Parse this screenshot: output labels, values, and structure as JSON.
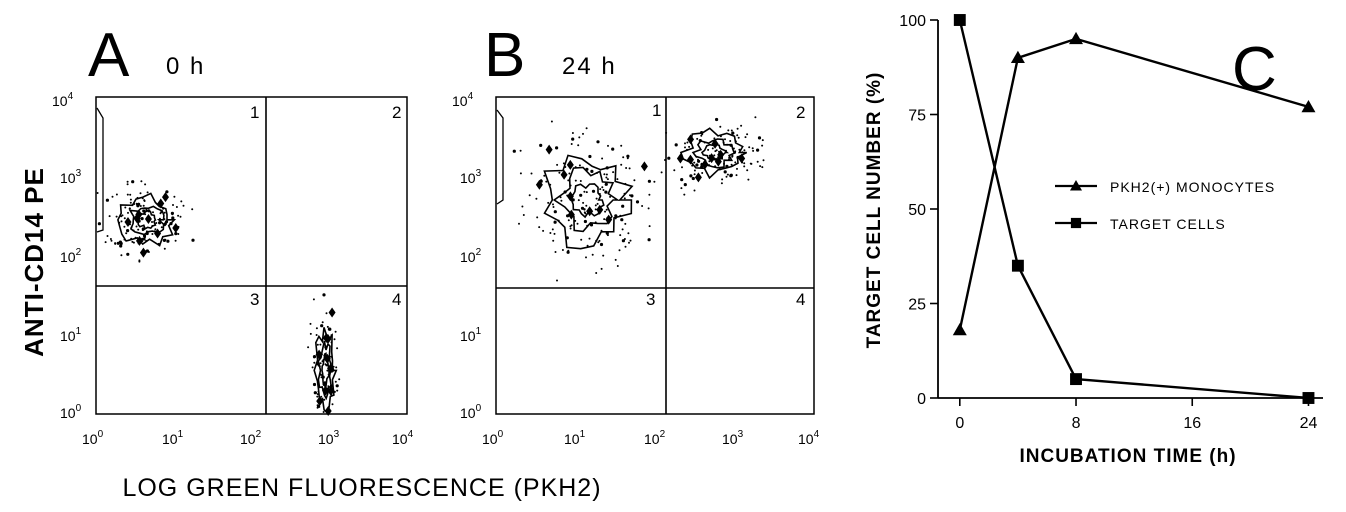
{
  "panels": {
    "A": {
      "letter": "A",
      "time": "0 h"
    },
    "B": {
      "letter": "B",
      "time": "24 h"
    },
    "C": {
      "letter": "C"
    }
  },
  "flow": {
    "ylabel": "ANTI-CD14 PE",
    "xlabel": "LOG GREEN FLUORESCENCE (PKH2)",
    "ticks": [
      "10",
      "10",
      "10",
      "10",
      "10"
    ],
    "tick_exponents": [
      "0",
      "1",
      "2",
      "3",
      "4"
    ],
    "quadrants": [
      "1",
      "2",
      "3",
      "4"
    ],
    "gate": {
      "x_log": 2.05,
      "y_log_A": 1.6,
      "y_log_B": 1.58
    },
    "populations_A": [
      {
        "x_log": 0.65,
        "y_log": 2.45,
        "sx": 0.25,
        "sy": 0.22,
        "n": 140
      },
      {
        "x_log": 2.95,
        "y_log": 0.55,
        "sx": 0.09,
        "sy": 0.4,
        "n": 90
      }
    ],
    "populations_B": [
      {
        "x_log": 1.15,
        "y_log": 2.7,
        "sx": 0.4,
        "sy": 0.42,
        "n": 170
      },
      {
        "x_log": 2.75,
        "y_log": 3.3,
        "sx": 0.28,
        "sy": 0.2,
        "n": 120
      }
    ]
  },
  "chart_data": [
    {
      "type": "line",
      "panel": "C",
      "xlabel": "INCUBATION TIME (h)",
      "ylabel": "TARGET CELL NUMBER (%)",
      "xlim": [
        -1.5,
        25
      ],
      "ylim": [
        0,
        100
      ],
      "xticks": [
        0,
        8,
        16,
        24
      ],
      "yticks": [
        0,
        25,
        50,
        75,
        100
      ],
      "legend_position": "center-right",
      "series": [
        {
          "name": "PKH2(+) MONOCYTES",
          "marker": "triangle",
          "x": [
            0,
            4,
            8,
            24
          ],
          "y": [
            18,
            90,
            95,
            77
          ]
        },
        {
          "name": "TARGET CELLS",
          "marker": "square",
          "x": [
            0,
            4,
            8,
            24
          ],
          "y": [
            100,
            35,
            5,
            0
          ]
        }
      ]
    }
  ]
}
